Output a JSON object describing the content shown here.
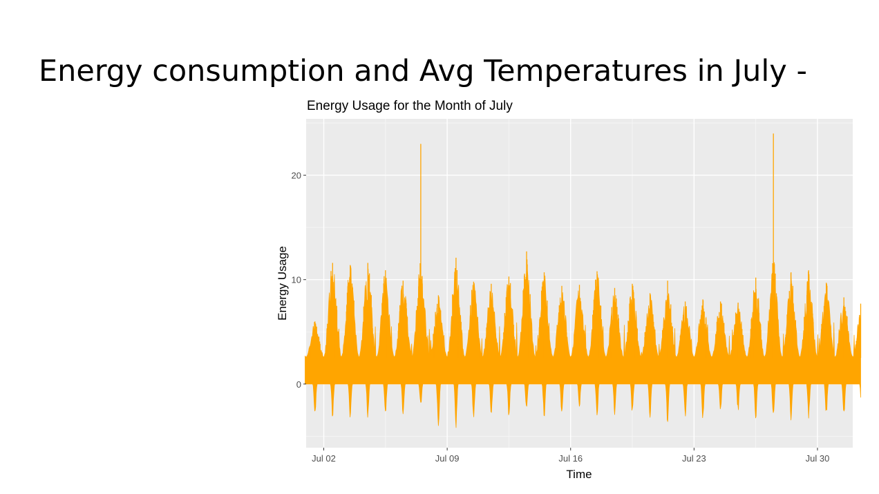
{
  "slide": {
    "title": "Energy consumption and Avg Temperatures in July -"
  },
  "chart_data": {
    "type": "area",
    "title": "Energy Usage for the Month of July",
    "xlabel": "Time",
    "ylabel": "Energy Usage",
    "x_ticks": [
      "Jul 02",
      "Jul 09",
      "Jul 16",
      "Jul 23",
      "Jul 30"
    ],
    "x_tick_days": [
      2,
      9,
      16,
      23,
      30
    ],
    "xlim_days": [
      1,
      32
    ],
    "data_range_days": [
      0.94,
      32.45
    ],
    "y_ticks": [
      0,
      10,
      20
    ],
    "ylim": [
      -6.1,
      25.4
    ],
    "grid": true,
    "background": "#ebebeb",
    "series": [
      {
        "color": "#FFA500",
        "daily_peaks": [
          {
            "date": "Jul 01",
            "max": 6.0,
            "min": -3.5
          },
          {
            "date": "Jul 02",
            "max": 11.6,
            "min": -3.4
          },
          {
            "date": "Jul 03",
            "max": 11.4,
            "min": -3.6
          },
          {
            "date": "Jul 04",
            "max": 11.6,
            "min": -3.5
          },
          {
            "date": "Jul 05",
            "max": 10.9,
            "min": -3.3
          },
          {
            "date": "Jul 06",
            "max": 9.9,
            "min": -3.4
          },
          {
            "date": "Jul 07",
            "max": 23.0,
            "min": -2.5
          },
          {
            "date": "Jul 08",
            "max": 8.5,
            "min": -4.8
          },
          {
            "date": "Jul 09",
            "max": 12.1,
            "min": -4.5
          },
          {
            "date": "Jul 10",
            "max": 9.8,
            "min": -4.0
          },
          {
            "date": "Jul 11",
            "max": 9.6,
            "min": -3.5
          },
          {
            "date": "Jul 12",
            "max": 10.3,
            "min": -3.6
          },
          {
            "date": "Jul 13",
            "max": 12.7,
            "min": -3.0
          },
          {
            "date": "Jul 14",
            "max": 10.7,
            "min": -3.5
          },
          {
            "date": "Jul 15",
            "max": 9.4,
            "min": -3.4
          },
          {
            "date": "Jul 16",
            "max": 9.5,
            "min": -2.4
          },
          {
            "date": "Jul 17",
            "max": 10.8,
            "min": -3.5
          },
          {
            "date": "Jul 18",
            "max": 9.2,
            "min": -3.3
          },
          {
            "date": "Jul 19",
            "max": 9.6,
            "min": -3.2
          },
          {
            "date": "Jul 20",
            "max": 8.7,
            "min": -3.5
          },
          {
            "date": "Jul 21",
            "max": 9.9,
            "min": -4.0
          },
          {
            "date": "Jul 22",
            "max": 7.9,
            "min": -3.7
          },
          {
            "date": "Jul 23",
            "max": 8.1,
            "min": -3.7
          },
          {
            "date": "Jul 24",
            "max": 7.9,
            "min": -3.0
          },
          {
            "date": "Jul 25",
            "max": 7.8,
            "min": -3.0
          },
          {
            "date": "Jul 26",
            "max": 10.2,
            "min": -4.0
          },
          {
            "date": "Jul 27",
            "max": 24.0,
            "min": -3.9
          },
          {
            "date": "Jul 28",
            "max": 10.7,
            "min": -3.8
          },
          {
            "date": "Jul 29",
            "max": 10.9,
            "min": -3.7
          },
          {
            "date": "Jul 30",
            "max": 9.7,
            "min": -3.4
          },
          {
            "date": "Jul 31",
            "max": 8.3,
            "min": -3.6
          },
          {
            "date": "Aug 01",
            "max": 7.7,
            "min": -2.5
          }
        ]
      }
    ]
  }
}
